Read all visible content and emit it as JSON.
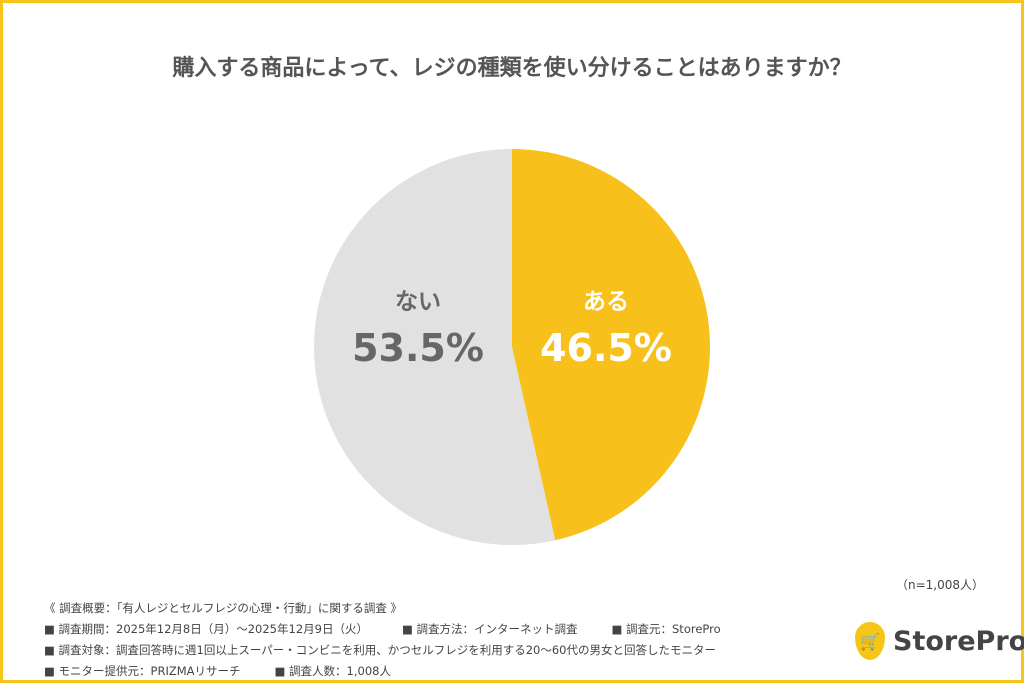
{
  "chart_data": {
    "type": "pie",
    "title": "購入する商品によって、レジの種類を使い分けることはありますか？",
    "slices": [
      {
        "label": "ある",
        "value": 46.5,
        "value_label": "46.5%",
        "color": "#f7c01b",
        "text_color": "#ffffff"
      },
      {
        "label": "ない",
        "value": 53.5,
        "value_label": "53.5%",
        "color": "#e1e1e1",
        "text_color": "#666666"
      }
    ],
    "start": "top",
    "direction": "clockwise"
  },
  "sample": "（n=1,008人）",
  "notes": {
    "heading": "《 調査概要：「有人レジとセルフレジの心理・行動」に関する調査 》",
    "period": "■ 調査期間：2025年12月8日（月）～2025年12月9日（火）",
    "method": "■ 調査方法：インターネット調査",
    "source": "■ 調査元：StorePro",
    "target": "■ 調査対象：調査回答時に週1回以上スーパー・コンビニを利用、かつセルフレジを利用する20～60代の男女と回答したモニター",
    "provider": "■ モニター提供元：PRIZMAリサーチ",
    "count": "■ 調査人数：1,008人"
  },
  "logo": {
    "text": "StorePro",
    "icon": "shopping-cart-pin-icon",
    "color": "#f5c518"
  },
  "frame_color": "#f5c518"
}
